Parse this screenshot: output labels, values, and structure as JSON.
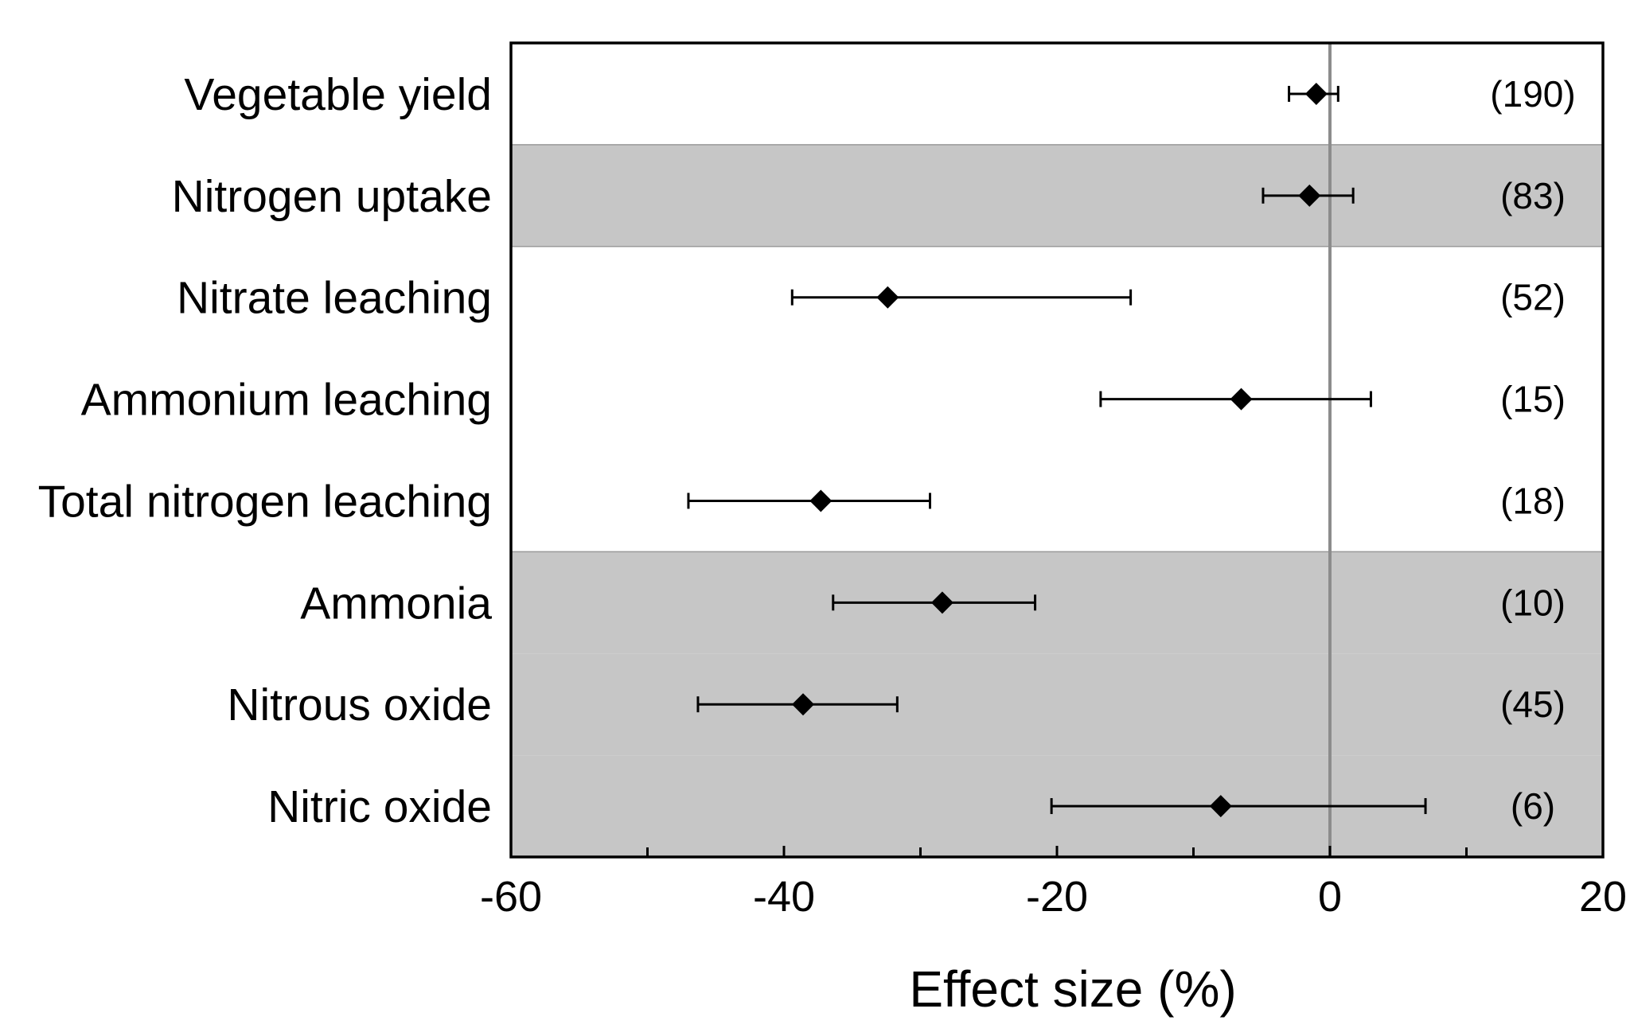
{
  "chart_data": {
    "type": "forest",
    "xlabel": "Effect size (%)",
    "xlim": [
      -60,
      20
    ],
    "xticks": [
      -60,
      -40,
      -20,
      0,
      20
    ],
    "xticks_minor": [
      -50,
      -30,
      -10,
      10
    ],
    "reference_line": 0,
    "colors": {
      "shade": "#c6c6c6",
      "reference_line": "#8c8c8c",
      "marker": "#000000"
    },
    "categories": [
      {
        "label": "Vegetable yield",
        "mean": -1.0,
        "lower": -3.0,
        "upper": 0.6,
        "n": "(190)",
        "shaded": false
      },
      {
        "label": "Nitrogen uptake",
        "mean": -1.5,
        "lower": -4.9,
        "upper": 1.7,
        "n": "(83)",
        "shaded": true
      },
      {
        "label": "Nitrate leaching",
        "mean": -32.4,
        "lower": -39.4,
        "upper": -14.6,
        "n": "(52)",
        "shaded": false
      },
      {
        "label": "Ammonium leaching",
        "mean": -6.5,
        "lower": -16.8,
        "upper": 3.0,
        "n": "(15)",
        "shaded": false
      },
      {
        "label": "Total nitrogen leaching",
        "mean": -37.3,
        "lower": -47.0,
        "upper": -29.3,
        "n": "(18)",
        "shaded": false
      },
      {
        "label": "Ammonia",
        "mean": -28.4,
        "lower": -36.4,
        "upper": -21.6,
        "n": "(10)",
        "shaded": true
      },
      {
        "label": "Nitrous oxide",
        "mean": -38.6,
        "lower": -46.3,
        "upper": -31.7,
        "n": "(45)",
        "shaded": true
      },
      {
        "label": "Nitric oxide",
        "mean": -8.0,
        "lower": -20.4,
        "upper": 7.0,
        "n": "(6)",
        "shaded": true
      }
    ]
  }
}
